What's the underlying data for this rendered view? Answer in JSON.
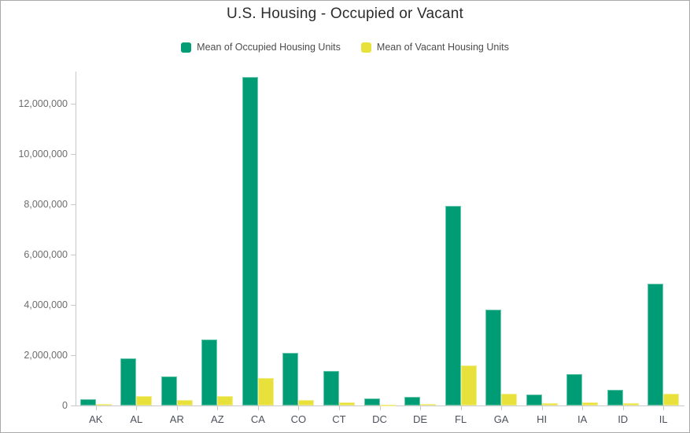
{
  "title": "U.S. Housing - Occupied or Vacant",
  "legend": {
    "items": [
      {
        "label": "Mean of Occupied Housing Units",
        "color": "#009c76"
      },
      {
        "label": "Mean of Vacant Housing Units",
        "color": "#e8e13c"
      }
    ]
  },
  "colors": {
    "occupied": "#009c76",
    "occupied_edge": "#6cc9ae",
    "vacant": "#e8e13c",
    "vacant_edge": "#f3ee8a",
    "axis_line": "#c9c9c9",
    "y_tick_label": "#6d6d6d",
    "category_label": "#4c515c",
    "title_text": "#2d2d2d",
    "canvas_border": "#a9a9a9",
    "background": "#ffffff"
  },
  "y_axis": {
    "tick_labels": [
      "0",
      "2,000,000",
      "4,000,000",
      "6,000,000",
      "8,000,000",
      "10,000,000",
      "12,000,000"
    ],
    "tick_values": [
      0,
      2000000,
      4000000,
      6000000,
      8000000,
      10000000,
      12000000
    ]
  },
  "chart_data": {
    "type": "bar",
    "title": "U.S. Housing - Occupied or Vacant",
    "categories": [
      "AK",
      "AL",
      "AR",
      "AZ",
      "CA",
      "CO",
      "CT",
      "DC",
      "DE",
      "FL",
      "GA",
      "HI",
      "IA",
      "ID",
      "IL"
    ],
    "series": [
      {
        "name": "Mean of Occupied Housing Units",
        "color": "#009c76",
        "values": [
          240000,
          1870000,
          1150000,
          2630000,
          13060000,
          2100000,
          1390000,
          270000,
          340000,
          7930000,
          3820000,
          450000,
          1250000,
          630000,
          4850000
        ]
      },
      {
        "name": "Mean of Vacant Housing Units",
        "color": "#e8e13c",
        "values": [
          60000,
          360000,
          210000,
          390000,
          1100000,
          230000,
          140000,
          30000,
          70000,
          1600000,
          480000,
          85000,
          125000,
          85000,
          470000
        ]
      }
    ],
    "xlabel": "",
    "ylabel": "",
    "ylim": [
      0,
      13280000
    ],
    "grid": false,
    "legend_position": "top"
  }
}
